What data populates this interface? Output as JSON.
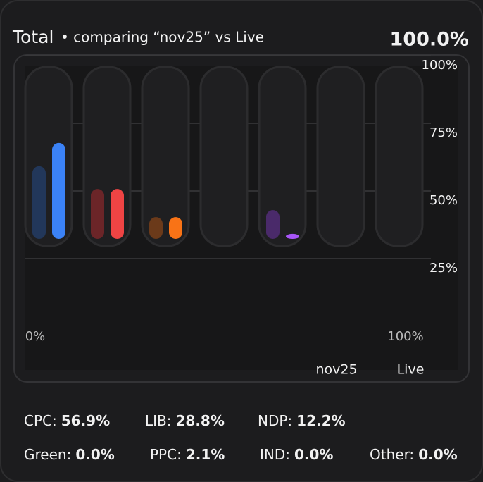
{
  "header": {
    "title": "Total",
    "subtitle": "• comparing “nov25” vs Live",
    "total": "100.0%"
  },
  "chart_data": {
    "type": "bar",
    "categories": [
      null,
      null,
      null,
      null,
      null,
      null,
      null
    ],
    "series": [
      {
        "name": "nov25",
        "colors": [
          "#22375a",
          "#6b2528",
          "#6b3a1a",
          "#3a3a3a",
          "#4a2a6a",
          "#3a3a3a",
          "#3a3a3a"
        ],
        "values": [
          25.8,
          17.4,
          7.0,
          0,
          9.6,
          0,
          0
        ]
      },
      {
        "name": "Live",
        "colors": [
          "#3b82f6",
          "#ef4444",
          "#f97316",
          "#9ca3af",
          "#a855f7",
          "#9ca3af",
          "#9ca3af"
        ],
        "values": [
          34.4,
          17.4,
          7.0,
          0,
          0.8,
          0,
          0
        ]
      }
    ],
    "ylim": [
      0,
      100
    ],
    "yticks": [
      {
        "value": 25,
        "label": "25%"
      },
      {
        "value": 50,
        "label": "50%"
      },
      {
        "value": 75,
        "label": "75%"
      },
      {
        "value": 100,
        "label": "100%"
      }
    ],
    "grid": true,
    "slider_labels": [
      "0%",
      "100%"
    ]
  },
  "stats": [
    {
      "label": "CPC:",
      "value": "56.9%"
    },
    {
      "label": "LIB:",
      "value": "28.8%"
    },
    {
      "label": "NDP:",
      "value": "12.2%"
    },
    {
      "label": "Green:",
      "value": "0.0%"
    },
    {
      "label": "PPC:",
      "value": "2.1%"
    },
    {
      "label": "IND:",
      "value": "0.0%"
    },
    {
      "label": "Other:",
      "value": "0.0%"
    }
  ]
}
